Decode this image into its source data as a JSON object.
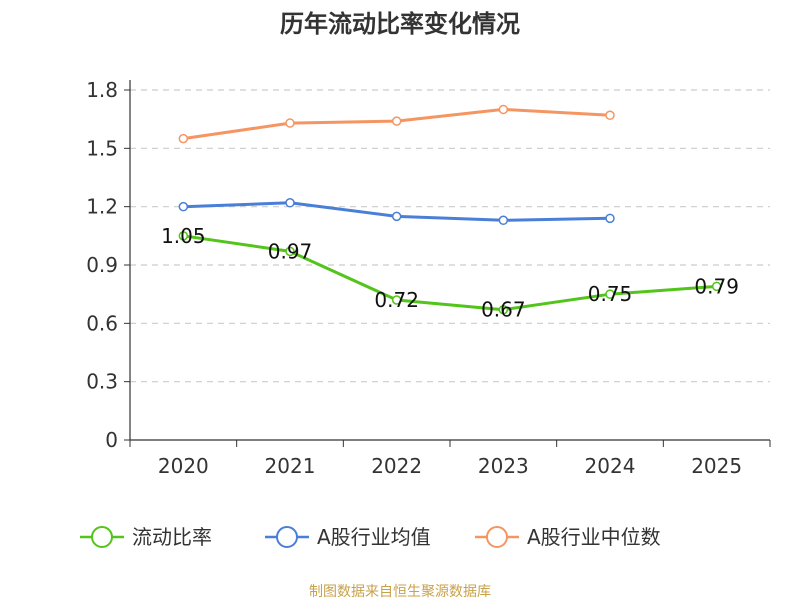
{
  "chart_data": {
    "type": "line",
    "title": "历年流动比率变化情况",
    "categories": [
      "2020",
      "2021",
      "2022",
      "2023",
      "2024",
      "2025"
    ],
    "ylim": [
      0,
      1.8
    ],
    "yticks": [
      0,
      0.3,
      0.6,
      0.9,
      1.2,
      1.5,
      1.8
    ],
    "ytick_labels": [
      "0",
      "0.3",
      "0.6",
      "0.9",
      "1.2",
      "1.5",
      "1.8"
    ],
    "xlabel": "",
    "ylabel": "",
    "grid": true,
    "legend_position": "bottom",
    "series": [
      {
        "name": "流动比率",
        "color": "#52c41a",
        "values": [
          1.05,
          0.97,
          0.72,
          0.67,
          0.75,
          0.79
        ],
        "labels": [
          "1.05",
          "0.97",
          "0.72",
          "0.67",
          "0.75",
          "0.79"
        ]
      },
      {
        "name": "A股行业均值",
        "color": "#4a7fd8",
        "values": [
          1.2,
          1.22,
          1.15,
          1.13,
          1.14,
          null
        ],
        "labels": []
      },
      {
        "name": "A股行业中位数",
        "color": "#f59562",
        "values": [
          1.55,
          1.63,
          1.64,
          1.7,
          1.67,
          null
        ],
        "labels": []
      }
    ],
    "source": "制图数据来自恒生聚源数据库"
  }
}
